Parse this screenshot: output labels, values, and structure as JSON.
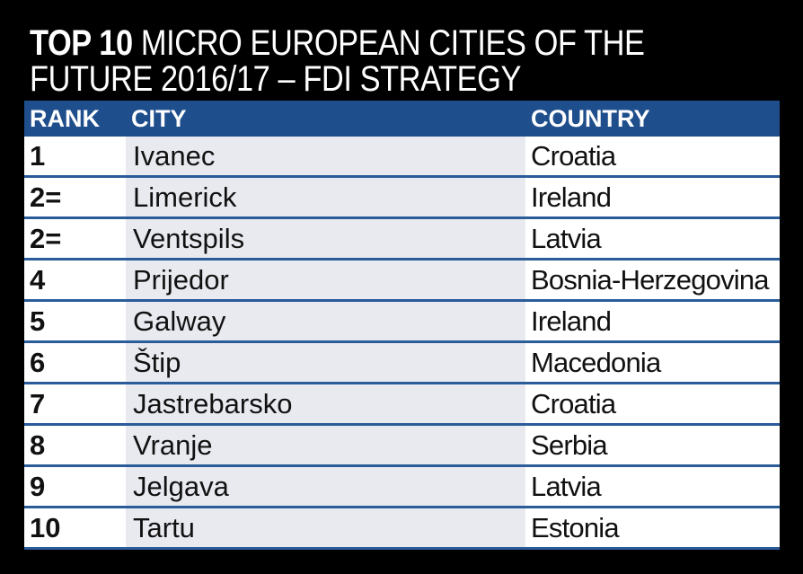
{
  "header": {
    "title_bold": "TOP 10",
    "title_line1": "MICRO EUROPEAN CITIES OF THE",
    "title_line2": "FUTURE 2016/17 – FDI STRATEGY"
  },
  "table": {
    "columns": [
      "RANK",
      "CITY",
      "COUNTRY"
    ],
    "rows": [
      [
        "1",
        "Ivanec",
        "Croatia"
      ],
      [
        "2=",
        "Limerick",
        "Ireland"
      ],
      [
        "2=",
        "Ventspils",
        "Latvia"
      ],
      [
        "4",
        "Prijedor",
        "Bosnia-Herzegovina"
      ],
      [
        "5",
        "Galway",
        "Ireland"
      ],
      [
        "6",
        "Štip",
        "Macedonia"
      ],
      [
        "7",
        "Jastrebarsko",
        "Croatia"
      ],
      [
        "8",
        "Vranje",
        "Serbia"
      ],
      [
        "9",
        "Jelgava",
        "Latvia"
      ],
      [
        "10",
        "Tartu",
        "Estonia"
      ]
    ]
  }
}
